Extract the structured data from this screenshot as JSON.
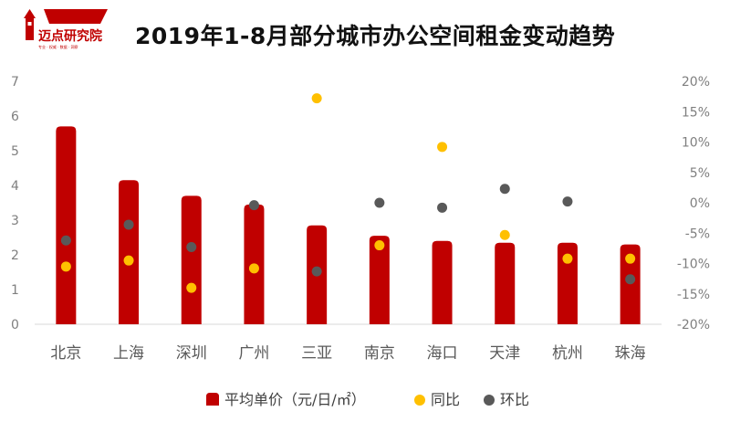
{
  "title": "2019年1-8月部分城市办公空间租金变动趋势",
  "logo": {
    "name": "迈点研究院",
    "tagline": "专业 · 权威 · 数据 · 洞察"
  },
  "colors": {
    "bar": "#c00000",
    "yoy": "#ffc000",
    "mom": "#595959",
    "axis": "#d9d9d9"
  },
  "chart_data": {
    "type": "bar",
    "categories": [
      "北京",
      "上海",
      "深圳",
      "广州",
      "三亚",
      "南京",
      "海口",
      "天津",
      "杭州",
      "珠海"
    ],
    "series": [
      {
        "name": "平均单价（元/日/㎡）",
        "type": "bar",
        "axis": "left",
        "values": [
          5.7,
          4.15,
          3.7,
          3.45,
          2.85,
          2.55,
          2.4,
          2.35,
          2.35,
          2.3
        ]
      },
      {
        "name": "同比",
        "type": "scatter",
        "axis": "right",
        "unit": "%",
        "values": [
          -10.5,
          -9.5,
          -14,
          -10.8,
          17.2,
          -7,
          9.2,
          -5.3,
          -9.2,
          -9.2
        ]
      },
      {
        "name": "环比",
        "type": "scatter",
        "axis": "right",
        "unit": "%",
        "values": [
          -6.2,
          -3.6,
          -7.3,
          -0.4,
          -11.3,
          0,
          -0.8,
          2.3,
          0.2,
          -12.6
        ]
      }
    ],
    "left_ticks": [
      "0",
      "1",
      "2",
      "3",
      "4",
      "5",
      "6",
      "7"
    ],
    "right_ticks": [
      "-20%",
      "-15%",
      "-10%",
      "-5%",
      "0%",
      "5%",
      "10%",
      "15%",
      "20%"
    ],
    "ylim_left": [
      0,
      7
    ],
    "ylim_right": [
      -20,
      20
    ],
    "grid": false,
    "legend_position": "bottom"
  }
}
